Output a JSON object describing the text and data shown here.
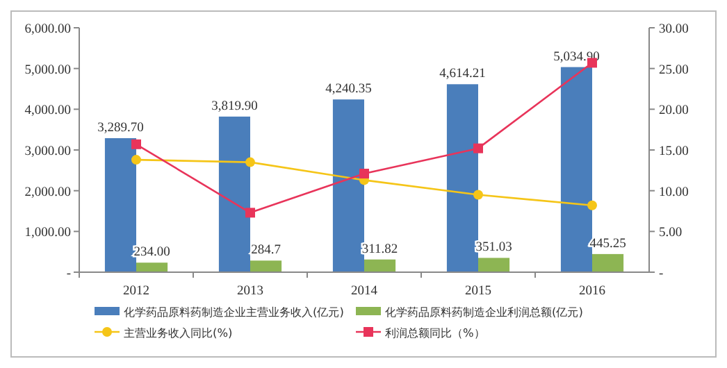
{
  "chart_data": {
    "type": "bar",
    "categories": [
      "2012",
      "2013",
      "2014",
      "2015",
      "2016"
    ],
    "series": [
      {
        "name": "化学药品原料药制造企业主营业务收入(亿元)",
        "color": "#4a7ebb",
        "values": [
          3289.7,
          3819.9,
          4240.35,
          4614.21,
          5034.9
        ],
        "value_labels": [
          "3,289.70",
          "3,819.90",
          "4,240.35",
          "4,614.21",
          "5,034.90"
        ]
      },
      {
        "name": "化学药品原料药制造企业利润总额(亿元)",
        "color": "#8db553",
        "values": [
          234,
          284.7,
          311.82,
          351.03,
          445.25
        ],
        "value_labels": [
          "234.00",
          "284.7",
          "311.82",
          "351.03",
          "445.25"
        ]
      },
      {
        "name": "主营业务收入同比(%)",
        "type": "line",
        "axis": "y2",
        "color": "#f5c518",
        "marker": "circle",
        "values": [
          13.8,
          13.5,
          11.3,
          9.5,
          8.2
        ]
      },
      {
        "name": "利润总额同比（%）",
        "type": "line",
        "axis": "y2",
        "color": "#e8345a",
        "marker": "square",
        "values": [
          15.7,
          7.3,
          12.1,
          15.2,
          25.7
        ]
      }
    ],
    "ylim": [
      0,
      6000
    ],
    "yticks": [
      {
        "value": 0,
        "label": "-"
      },
      {
        "value": 1000,
        "label": "1,000.00"
      },
      {
        "value": 2000,
        "label": "2,000.00"
      },
      {
        "value": 3000,
        "label": "3,000.00"
      },
      {
        "value": 4000,
        "label": "4,000.00"
      },
      {
        "value": 5000,
        "label": "5,000.00"
      },
      {
        "value": 6000,
        "label": "6,000.00"
      }
    ],
    "y2lim": [
      0,
      30
    ],
    "y2ticks": [
      {
        "value": 0,
        "label": "-"
      },
      {
        "value": 5,
        "label": "5.00"
      },
      {
        "value": 10,
        "label": "10.00"
      },
      {
        "value": 15,
        "label": "15.00"
      },
      {
        "value": 20,
        "label": "20.00"
      },
      {
        "value": 25,
        "label": "25.00"
      },
      {
        "value": 30,
        "label": "30.00"
      }
    ],
    "legend": "bottom",
    "grid": false
  }
}
